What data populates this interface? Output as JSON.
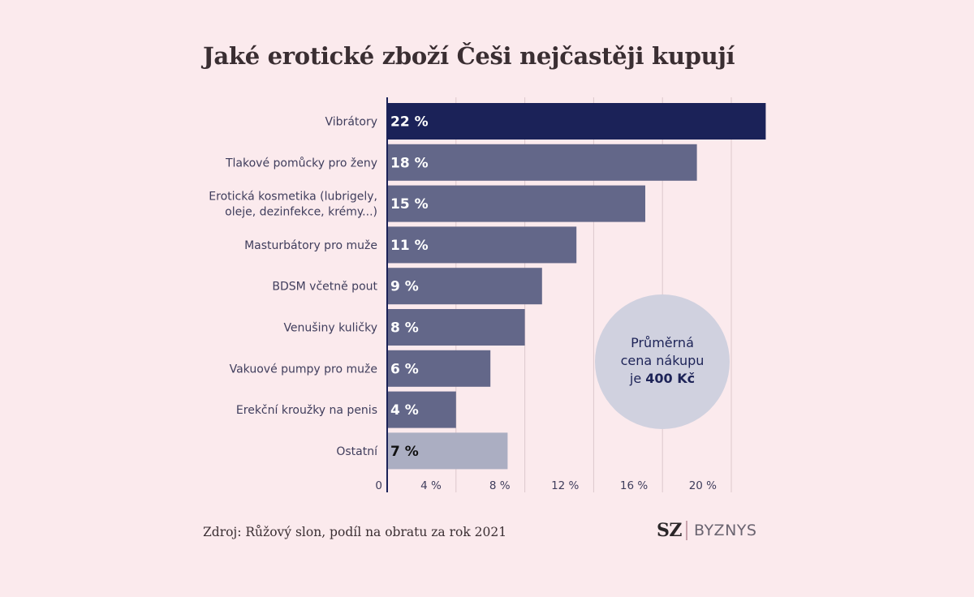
{
  "chart_data": {
    "type": "bar",
    "orientation": "horizontal",
    "title": "Jaké erotické zboží Češi nejčastěji kupují",
    "categories": [
      [
        "Vibrátory"
      ],
      [
        "Tlakové pomůcky pro ženy"
      ],
      [
        "Erotická kosmetika (lubrigely,",
        "oleje, dezinfekce, krémy...)"
      ],
      [
        "Masturbátory pro muže"
      ],
      [
        "BDSM včetně pout"
      ],
      [
        "Venušiny kuličky"
      ],
      [
        "Vakuové pumpy pro muže"
      ],
      [
        "Erekční kroužky na penis"
      ],
      [
        "Ostatní"
      ]
    ],
    "values": [
      22,
      18,
      15,
      11,
      9,
      8,
      6,
      4,
      7
    ],
    "value_labels": [
      "22 %",
      "18 %",
      "15 %",
      "11 %",
      "9 %",
      "8 %",
      "6 %",
      "4 %",
      "7 %"
    ],
    "bar_colors": [
      "#1b2258",
      "#636789",
      "#636789",
      "#636789",
      "#636789",
      "#636789",
      "#636789",
      "#636789",
      "#abaec2"
    ],
    "value_label_colors": [
      "#ffffff",
      "#ffffff",
      "#ffffff",
      "#ffffff",
      "#ffffff",
      "#ffffff",
      "#ffffff",
      "#ffffff",
      "#111111"
    ],
    "xlim": [
      0,
      22
    ],
    "xticks": [
      0,
      4,
      8,
      12,
      16,
      20
    ],
    "xtick_labels": [
      "0",
      "4 %",
      "8 %",
      "12 %",
      "16 %",
      "20 %"
    ],
    "grid": true,
    "annotation": {
      "lines": [
        [
          {
            "text": "Průměrná",
            "bold": false
          }
        ],
        [
          {
            "text": "cena nákupu",
            "bold": false
          }
        ],
        [
          {
            "text": "je ",
            "bold": false
          },
          {
            "text": "400 Kč",
            "bold": true
          }
        ]
      ],
      "circle_color": "#d0d1df"
    }
  },
  "colors": {
    "background": "#fbeaed",
    "gridline": "#dcc8cc",
    "axis": "#1b2258"
  },
  "footer": {
    "source": "Zdroj: Růžový slon, podíl na obratu za rok 2021",
    "logo_mark": "SZ",
    "logo_text": "BYZNYS"
  }
}
